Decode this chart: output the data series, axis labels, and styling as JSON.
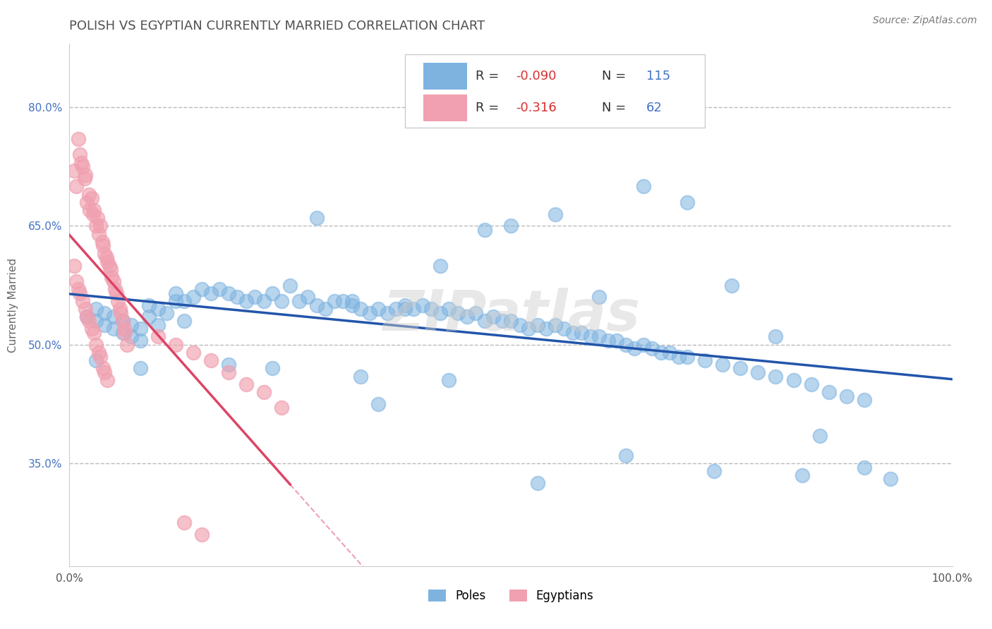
{
  "title": "POLISH VS EGYPTIAN CURRENTLY MARRIED CORRELATION CHART",
  "source_text": "Source: ZipAtlas.com",
  "ylabel": "Currently Married",
  "xlim": [
    0.0,
    1.0
  ],
  "ylim": [
    0.22,
    0.88
  ],
  "yticks": [
    0.35,
    0.5,
    0.65,
    0.8
  ],
  "ytick_labels": [
    "35.0%",
    "50.0%",
    "65.0%",
    "80.0%"
  ],
  "xticks": [
    0.0,
    0.25,
    0.5,
    0.75,
    1.0
  ],
  "xtick_labels": [
    "0.0%",
    "",
    "",
    "",
    "100.0%"
  ],
  "poles_color": "#7EB3E0",
  "egyptians_color": "#F0A0B0",
  "poles_R": -0.09,
  "poles_N": 115,
  "egyptians_R": -0.316,
  "egyptians_N": 62,
  "watermark": "ZIPatlas",
  "legend_R_color": "#D93030",
  "legend_N_color": "#4472C4",
  "legend_label_color": "#333333",
  "title_color": "#505050",
  "title_fontsize": 13,
  "background_color": "#FFFFFF",
  "grid_color": "#BBBBBB",
  "poles_line_color": "#2255AA",
  "egyptians_line_color": "#DD4466",
  "poles_x": [
    0.02,
    0.03,
    0.03,
    0.04,
    0.04,
    0.05,
    0.05,
    0.06,
    0.06,
    0.07,
    0.07,
    0.08,
    0.08,
    0.09,
    0.09,
    0.1,
    0.1,
    0.11,
    0.12,
    0.12,
    0.13,
    0.14,
    0.15,
    0.16,
    0.17,
    0.18,
    0.19,
    0.2,
    0.21,
    0.22,
    0.23,
    0.24,
    0.25,
    0.26,
    0.27,
    0.28,
    0.29,
    0.3,
    0.31,
    0.32,
    0.33,
    0.34,
    0.35,
    0.36,
    0.37,
    0.38,
    0.39,
    0.4,
    0.41,
    0.42,
    0.43,
    0.44,
    0.45,
    0.46,
    0.47,
    0.48,
    0.49,
    0.5,
    0.51,
    0.52,
    0.53,
    0.54,
    0.55,
    0.56,
    0.57,
    0.58,
    0.59,
    0.6,
    0.61,
    0.62,
    0.63,
    0.64,
    0.65,
    0.66,
    0.67,
    0.68,
    0.69,
    0.7,
    0.72,
    0.74,
    0.76,
    0.78,
    0.8,
    0.82,
    0.84,
    0.86,
    0.88,
    0.9,
    0.35,
    0.42,
    0.47,
    0.5,
    0.55,
    0.28,
    0.32,
    0.38,
    0.6,
    0.65,
    0.7,
    0.75,
    0.8,
    0.85,
    0.9,
    0.63,
    0.73,
    0.83,
    0.93,
    0.53,
    0.43,
    0.33,
    0.23,
    0.13,
    0.03,
    0.08,
    0.18
  ],
  "poles_y": [
    0.535,
    0.53,
    0.545,
    0.525,
    0.54,
    0.52,
    0.535,
    0.515,
    0.53,
    0.51,
    0.525,
    0.505,
    0.52,
    0.535,
    0.55,
    0.525,
    0.545,
    0.54,
    0.555,
    0.565,
    0.555,
    0.56,
    0.57,
    0.565,
    0.57,
    0.565,
    0.56,
    0.555,
    0.56,
    0.555,
    0.565,
    0.555,
    0.575,
    0.555,
    0.56,
    0.55,
    0.545,
    0.555,
    0.555,
    0.55,
    0.545,
    0.54,
    0.545,
    0.54,
    0.545,
    0.55,
    0.545,
    0.55,
    0.545,
    0.54,
    0.545,
    0.54,
    0.535,
    0.54,
    0.53,
    0.535,
    0.53,
    0.53,
    0.525,
    0.52,
    0.525,
    0.52,
    0.525,
    0.52,
    0.515,
    0.515,
    0.51,
    0.51,
    0.505,
    0.505,
    0.5,
    0.495,
    0.5,
    0.495,
    0.49,
    0.49,
    0.485,
    0.485,
    0.48,
    0.475,
    0.47,
    0.465,
    0.46,
    0.455,
    0.45,
    0.44,
    0.435,
    0.43,
    0.425,
    0.6,
    0.645,
    0.65,
    0.665,
    0.66,
    0.555,
    0.545,
    0.56,
    0.7,
    0.68,
    0.575,
    0.51,
    0.385,
    0.345,
    0.36,
    0.34,
    0.335,
    0.33,
    0.325,
    0.455,
    0.46,
    0.47,
    0.53,
    0.48,
    0.47,
    0.475
  ],
  "egyptians_x": [
    0.005,
    0.008,
    0.01,
    0.012,
    0.013,
    0.015,
    0.017,
    0.018,
    0.02,
    0.022,
    0.023,
    0.025,
    0.027,
    0.028,
    0.03,
    0.032,
    0.033,
    0.035,
    0.037,
    0.038,
    0.04,
    0.042,
    0.043,
    0.045,
    0.047,
    0.048,
    0.05,
    0.052,
    0.053,
    0.055,
    0.057,
    0.058,
    0.06,
    0.062,
    0.063,
    0.065,
    0.005,
    0.008,
    0.01,
    0.012,
    0.015,
    0.018,
    0.02,
    0.022,
    0.025,
    0.028,
    0.03,
    0.033,
    0.035,
    0.038,
    0.04,
    0.043,
    0.1,
    0.12,
    0.14,
    0.16,
    0.18,
    0.2,
    0.22,
    0.24,
    0.13,
    0.15
  ],
  "egyptians_y": [
    0.72,
    0.7,
    0.76,
    0.74,
    0.73,
    0.725,
    0.71,
    0.715,
    0.68,
    0.69,
    0.67,
    0.685,
    0.665,
    0.67,
    0.65,
    0.66,
    0.64,
    0.65,
    0.63,
    0.625,
    0.615,
    0.61,
    0.605,
    0.6,
    0.595,
    0.585,
    0.58,
    0.57,
    0.565,
    0.555,
    0.545,
    0.54,
    0.53,
    0.52,
    0.515,
    0.5,
    0.6,
    0.58,
    0.57,
    0.565,
    0.555,
    0.545,
    0.535,
    0.53,
    0.52,
    0.515,
    0.5,
    0.49,
    0.485,
    0.47,
    0.465,
    0.455,
    0.51,
    0.5,
    0.49,
    0.48,
    0.465,
    0.45,
    0.44,
    0.42,
    0.275,
    0.26
  ]
}
